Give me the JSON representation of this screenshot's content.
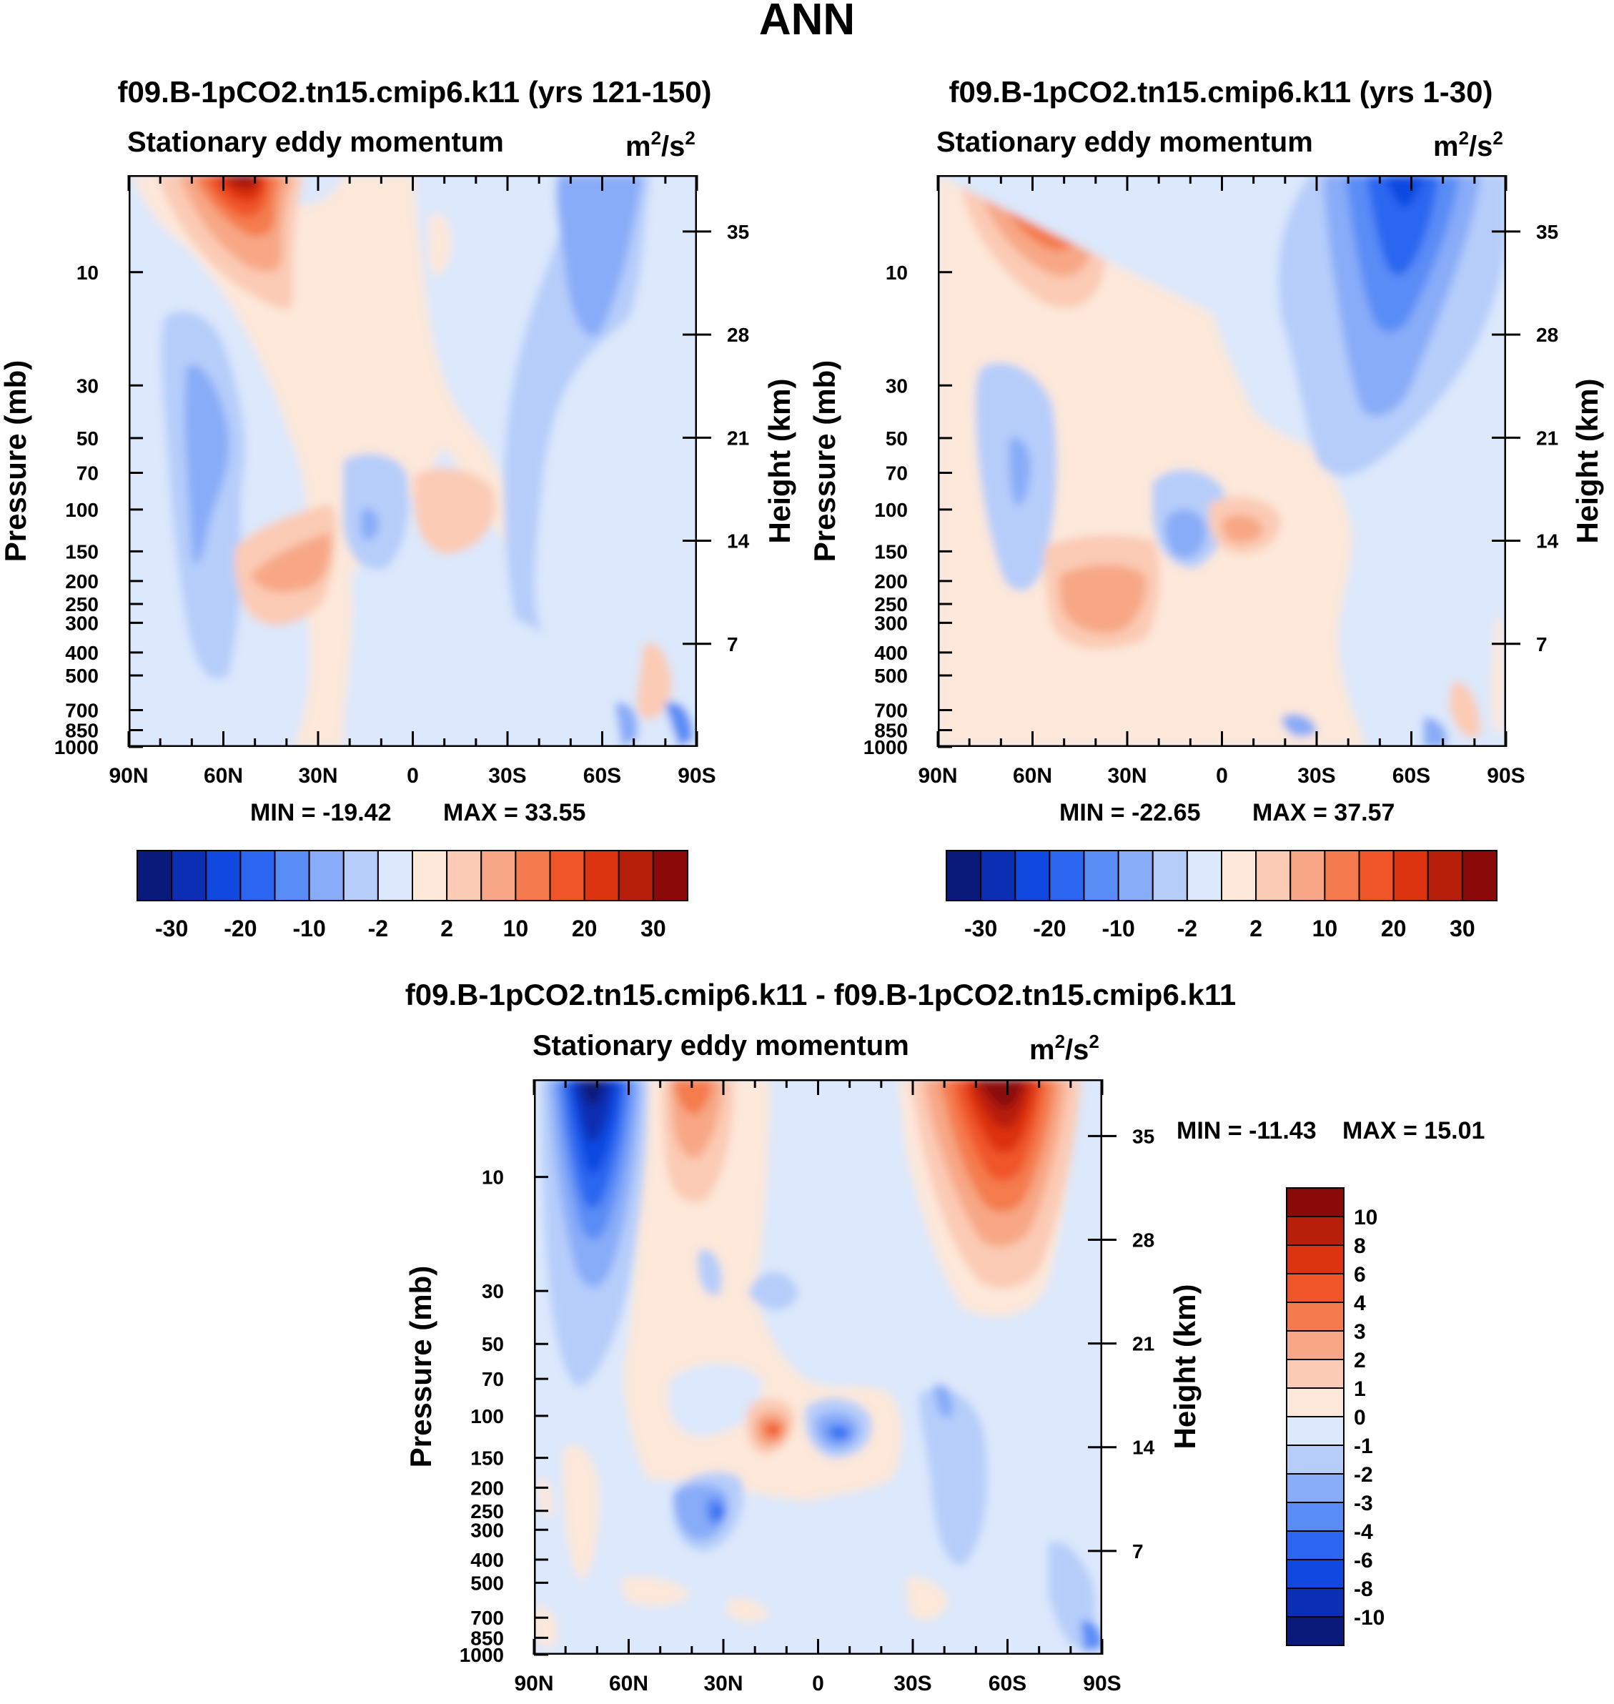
{
  "figure_title": "ANN",
  "colors": {
    "levels_main": [
      "#0a1a7a",
      "#0a2fb4",
      "#1148e0",
      "#2c66f0",
      "#5a8cf6",
      "#89acf8",
      "#b6cdfa",
      "#dce8fb",
      "#fde8da",
      "#fbcbb5",
      "#f7a786",
      "#f47b4d",
      "#f05529",
      "#dc3310",
      "#b81f0a",
      "#8a0a0a"
    ],
    "levels_diff": [
      "#0a1a7a",
      "#0a2fb4",
      "#1148e0",
      "#2c66f0",
      "#5a8cf6",
      "#89acf8",
      "#b6cdfa",
      "#dce8fb",
      "#fde8da",
      "#fbcbb5",
      "#f7a786",
      "#f47b4d",
      "#f05529",
      "#dc3310",
      "#b81f0a",
      "#8a0a0a"
    ]
  },
  "chart_data": [
    {
      "type": "heatmap",
      "title": "f09.B-1pCO2.tn15.cmip6.k11 (yrs 121-150)",
      "subtitle_left": "Stationary eddy momentum",
      "units": "m²/s²",
      "units_base": "m",
      "units_sup1": "2",
      "units_mid": "/s",
      "units_sup2": "2",
      "xlabel": "",
      "ylabel": "Pressure (mb)",
      "ylabel_right": "Height (km)",
      "x_ticks": [
        "90N",
        "60N",
        "30N",
        "0",
        "30S",
        "60S",
        "90S"
      ],
      "y_ticks": [
        10,
        30,
        50,
        70,
        100,
        150,
        200,
        250,
        300,
        400,
        500,
        700,
        850,
        1000
      ],
      "y_ticks_right": [
        35,
        28,
        21,
        14,
        7
      ],
      "min_label": "MIN = -19.42",
      "max_label": "MAX =  33.55",
      "min": -19.42,
      "max": 33.55,
      "colorbar_labels": [
        "-30",
        "-20",
        "-10",
        "-2",
        "2",
        "10",
        "20",
        "30"
      ],
      "features": [
        {
          "lat": 60,
          "p": 3,
          "value": 33,
          "kind": "max"
        },
        {
          "lat": 62,
          "p": 80,
          "value": -9,
          "kind": "min"
        },
        {
          "lat": -62,
          "p": 12,
          "value": -6,
          "kind": "min"
        },
        {
          "lat": -5,
          "p": 150,
          "value": 3,
          "kind": "max"
        },
        {
          "lat": 30,
          "p": 250,
          "value": 4,
          "kind": "max"
        },
        {
          "lat": 14,
          "p": 150,
          "value": -4,
          "kind": "min"
        }
      ]
    },
    {
      "type": "heatmap",
      "title": "f09.B-1pCO2.tn15.cmip6.k11 (yrs 1-30)",
      "subtitle_left": "Stationary eddy momentum",
      "units": "m²/s²",
      "units_base": "m",
      "units_sup1": "2",
      "units_mid": "/s",
      "units_sup2": "2",
      "xlabel": "",
      "ylabel": "Pressure (mb)",
      "ylabel_right": "Height (km)",
      "x_ticks": [
        "90N",
        "60N",
        "30N",
        "0",
        "30S",
        "60S",
        "90S"
      ],
      "y_ticks": [
        10,
        30,
        50,
        70,
        100,
        150,
        200,
        250,
        300,
        400,
        500,
        700,
        850,
        1000
      ],
      "y_ticks_right": [
        35,
        28,
        21,
        14,
        7
      ],
      "min_label": "MIN = -22.65",
      "max_label": "MAX =  37.57",
      "min": -22.65,
      "max": 37.57,
      "colorbar_labels": [
        "-30",
        "-20",
        "-10",
        "-2",
        "2",
        "10",
        "20",
        "30"
      ],
      "features": [
        {
          "lat": 60,
          "p": 3,
          "value": 37,
          "kind": "max"
        },
        {
          "lat": 64,
          "p": 80,
          "value": -8,
          "kind": "min"
        },
        {
          "lat": -60,
          "p": 5,
          "value": -22,
          "kind": "min"
        },
        {
          "lat": -8,
          "p": 150,
          "value": 5,
          "kind": "max"
        },
        {
          "lat": 12,
          "p": 150,
          "value": -7,
          "kind": "min"
        },
        {
          "lat": 30,
          "p": 260,
          "value": 4,
          "kind": "max"
        }
      ]
    },
    {
      "type": "heatmap",
      "title": "f09.B-1pCO2.tn15.cmip6.k11 - f09.B-1pCO2.tn15.cmip6.k11",
      "subtitle_left": "Stationary eddy momentum",
      "units": "m²/s²",
      "units_base": "m",
      "units_sup1": "2",
      "units_mid": "/s",
      "units_sup2": "2",
      "xlabel": "",
      "ylabel": "Pressure (mb)",
      "ylabel_right": "Height (km)",
      "x_ticks": [
        "90N",
        "60N",
        "30N",
        "0",
        "30S",
        "60S",
        "90S"
      ],
      "y_ticks": [
        10,
        30,
        50,
        70,
        100,
        150,
        200,
        250,
        300,
        400,
        500,
        700,
        850,
        1000
      ],
      "y_ticks_right": [
        35,
        28,
        21,
        14,
        7
      ],
      "min_label": "MIN = -11.43",
      "max_label": "MAX =  15.01",
      "min": -11.43,
      "max": 15.01,
      "colorbar_labels": [
        "10",
        "8",
        "6",
        "4",
        "3",
        "2",
        "1",
        "0",
        "-1",
        "-2",
        "-3",
        "-4",
        "-6",
        "-8",
        "-10"
      ],
      "features": [
        {
          "lat": 70,
          "p": 3,
          "value": -11,
          "kind": "min"
        },
        {
          "lat": 45,
          "p": 4,
          "value": 5,
          "kind": "max"
        },
        {
          "lat": -60,
          "p": 4,
          "value": 15,
          "kind": "max"
        },
        {
          "lat": -10,
          "p": 150,
          "value": -6,
          "kind": "min"
        },
        {
          "lat": 10,
          "p": 150,
          "value": 5,
          "kind": "max"
        },
        {
          "lat": 28,
          "p": 270,
          "value": -4,
          "kind": "min"
        }
      ]
    }
  ]
}
